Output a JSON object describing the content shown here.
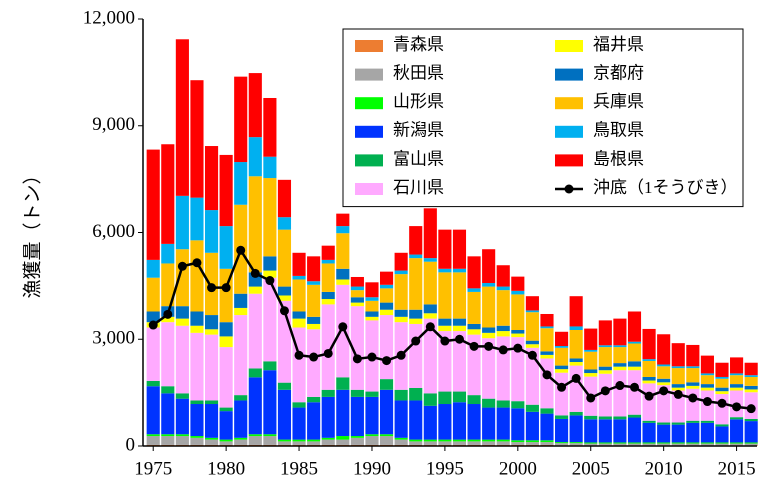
{
  "chart_data": {
    "type": "bar",
    "stacked": true,
    "y_label": "漁獲量（トン）",
    "x": [
      1975,
      1976,
      1977,
      1978,
      1979,
      1980,
      1981,
      1982,
      1983,
      1984,
      1985,
      1986,
      1987,
      1988,
      1989,
      1990,
      1991,
      1992,
      1993,
      1994,
      1995,
      1996,
      1997,
      1998,
      1999,
      2000,
      2001,
      2002,
      2003,
      2004,
      2005,
      2006,
      2007,
      2008,
      2009,
      2010,
      2011,
      2012,
      2013,
      2014,
      2015,
      2016
    ],
    "xlim": [
      1974.3,
      2016.4
    ],
    "xticks": [
      1975,
      1980,
      1985,
      1990,
      1995,
      2000,
      2005,
      2010,
      2015
    ],
    "ylim": [
      0,
      12000
    ],
    "yticks": [
      0,
      {
        "value": 3000,
        "label": "3,000"
      },
      {
        "value": 6000,
        "label": "6,000"
      },
      {
        "value": 9000,
        "label": "9,000"
      },
      {
        "value": 12000,
        "label": "12,000"
      }
    ],
    "legend": "upper right",
    "series": [
      {
        "name": "青森県",
        "color": "#ed7d31",
        "values": [
          30,
          30,
          30,
          30,
          30,
          30,
          30,
          30,
          30,
          30,
          30,
          30,
          30,
          30,
          30,
          30,
          30,
          30,
          30,
          30,
          30,
          30,
          30,
          30,
          30,
          30,
          30,
          30,
          20,
          20,
          20,
          20,
          20,
          20,
          20,
          20,
          20,
          20,
          20,
          20,
          20,
          20
        ]
      },
      {
        "name": "秋田県",
        "color": "#a6a6a6",
        "values": [
          250,
          250,
          250,
          200,
          150,
          100,
          150,
          250,
          250,
          100,
          100,
          100,
          150,
          150,
          200,
          250,
          250,
          150,
          100,
          100,
          100,
          100,
          100,
          100,
          100,
          80,
          80,
          80,
          60,
          60,
          50,
          50,
          50,
          50,
          50,
          50,
          50,
          50,
          50,
          50,
          50,
          50
        ]
      },
      {
        "name": "山形県",
        "color": "#00ff00",
        "values": [
          50,
          50,
          50,
          50,
          50,
          50,
          50,
          50,
          50,
          50,
          50,
          50,
          50,
          100,
          50,
          50,
          50,
          50,
          50,
          50,
          50,
          50,
          50,
          50,
          50,
          50,
          50,
          50,
          30,
          30,
          30,
          30,
          30,
          30,
          30,
          30,
          30,
          30,
          30,
          30,
          30,
          30
        ]
      },
      {
        "name": "新潟県",
        "color": "#0033ff",
        "values": [
          1350,
          1150,
          1000,
          900,
          950,
          800,
          1050,
          1600,
          1800,
          1400,
          900,
          1050,
          1150,
          1300,
          1100,
          1050,
          1250,
          1050,
          1100,
          950,
          1000,
          1050,
          1000,
          900,
          900,
          900,
          800,
          750,
          650,
          750,
          650,
          650,
          650,
          700,
          550,
          500,
          500,
          550,
          550,
          450,
          650,
          600
        ]
      },
      {
        "name": "富山県",
        "color": "#00b050",
        "values": [
          150,
          200,
          150,
          100,
          100,
          100,
          150,
          250,
          250,
          200,
          150,
          150,
          200,
          350,
          200,
          150,
          300,
          300,
          350,
          350,
          350,
          300,
          250,
          250,
          200,
          200,
          200,
          150,
          100,
          100,
          100,
          80,
          80,
          80,
          60,
          60,
          60,
          60,
          60,
          60,
          60,
          60
        ]
      },
      {
        "name": "石川県",
        "color": "#ffaaff",
        "values": [
          1500,
          1800,
          1900,
          1900,
          1850,
          1700,
          2250,
          2100,
          2350,
          2300,
          2100,
          1900,
          2400,
          2600,
          2350,
          2000,
          1800,
          1900,
          1800,
          2100,
          1700,
          1700,
          1700,
          1700,
          1800,
          1800,
          1600,
          1400,
          1200,
          1300,
          1100,
          1200,
          1300,
          1250,
          1050,
          1050,
          900,
          900,
          850,
          850,
          750,
          750
        ]
      },
      {
        "name": "福井県",
        "color": "#ffff00",
        "values": [
          150,
          150,
          200,
          200,
          150,
          300,
          200,
          200,
          200,
          150,
          250,
          150,
          150,
          150,
          100,
          100,
          150,
          150,
          150,
          150,
          150,
          150,
          150,
          150,
          150,
          100,
          100,
          100,
          100,
          100,
          100,
          100,
          100,
          100,
          80,
          80,
          80,
          80,
          80,
          80,
          80,
          80
        ]
      },
      {
        "name": "京都府",
        "color": "#0070c0",
        "values": [
          300,
          300,
          350,
          400,
          400,
          400,
          400,
          400,
          400,
          250,
          200,
          200,
          200,
          300,
          150,
          150,
          200,
          200,
          250,
          250,
          200,
          200,
          150,
          150,
          150,
          100,
          100,
          100,
          100,
          100,
          100,
          100,
          100,
          150,
          100,
          100,
          100,
          100,
          100,
          100,
          100,
          100
        ]
      },
      {
        "name": "兵庫県",
        "color": "#ffc000",
        "values": [
          950,
          1200,
          1600,
          2000,
          1750,
          1500,
          2500,
          2700,
          2200,
          1600,
          900,
          900,
          800,
          1000,
          200,
          300,
          400,
          1000,
          1450,
          1200,
          1300,
          1300,
          900,
          1150,
          1000,
          1000,
          800,
          650,
          500,
          800,
          500,
          550,
          450,
          500,
          450,
          350,
          450,
          400,
          250,
          250,
          250,
          250
        ]
      },
      {
        "name": "鳥取県",
        "color": "#00b0f0",
        "values": [
          500,
          550,
          1500,
          1200,
          1200,
          1200,
          1200,
          1100,
          600,
          350,
          100,
          100,
          100,
          200,
          100,
          100,
          100,
          100,
          100,
          100,
          100,
          100,
          100,
          100,
          100,
          100,
          50,
          50,
          50,
          100,
          50,
          50,
          50,
          50,
          50,
          50,
          50,
          50,
          50,
          50,
          50,
          50
        ]
      },
      {
        "name": "島根県",
        "color": "#ff0000",
        "values": [
          3100,
          2800,
          4400,
          3300,
          1800,
          2000,
          2400,
          1800,
          1650,
          1050,
          650,
          700,
          400,
          350,
          270,
          420,
          370,
          500,
          800,
          1400,
          1100,
          1100,
          900,
          950,
          600,
          400,
          400,
          350,
          400,
          850,
          600,
          700,
          750,
          850,
          850,
          850,
          650,
          600,
          500,
          400,
          450,
          350
        ]
      },
      {
        "name": "沖底（1そうびき）",
        "type": "line",
        "color": "#000000",
        "values": [
          3400,
          3700,
          5050,
          5150,
          4450,
          4450,
          5500,
          4850,
          4650,
          3800,
          2550,
          2500,
          2600,
          3350,
          2450,
          2500,
          2400,
          2550,
          2950,
          3350,
          2950,
          3000,
          2800,
          2800,
          2700,
          2750,
          2550,
          2000,
          1650,
          1900,
          1350,
          1550,
          1700,
          1650,
          1400,
          1550,
          1450,
          1350,
          1250,
          1200,
          1100,
          1050
        ]
      }
    ]
  }
}
